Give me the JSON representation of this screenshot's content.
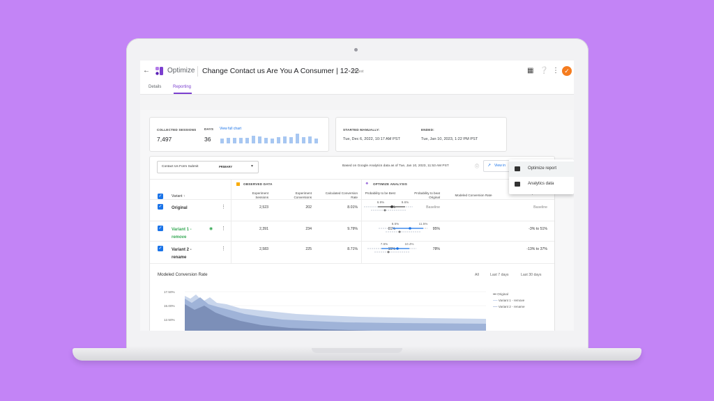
{
  "app": {
    "name": "Optimize",
    "title": "Change Contact us Are You A Consumer | 12-22",
    "type": "A/B test"
  },
  "tabs": [
    {
      "label": "Details"
    },
    {
      "label": "Reporting"
    }
  ],
  "summary": {
    "sessions_label": "COLLECTED SESSIONS",
    "sessions_value": "7,497",
    "days_label": "DAYS",
    "days_value": "36",
    "chart_link": "View full chart",
    "daily_bars": [
      0.45,
      0.55,
      0.55,
      0.55,
      0.55,
      0.75,
      0.7,
      0.55,
      0.5,
      0.6,
      0.7,
      0.6,
      0.95,
      0.6,
      0.65,
      0.45
    ],
    "started_label": "STARTED MANUALLY:",
    "started_value": "Tue, Dec 6, 2022, 10:17 AM PST",
    "ended_label": "ENDED:",
    "ended_value": "Tue, Jan 10, 2023, 1:22 PM PST"
  },
  "report": {
    "objective": "Contact Us Form Submit",
    "objective_badge": "PRIMARY",
    "based_on": "Based on Google Analytics data as of Tue, Jan 10, 2023, 11:53 AM PST",
    "view_in": "View in"
  },
  "menu": [
    {
      "label": "Optimize report"
    },
    {
      "label": "Analytics data"
    }
  ],
  "table": {
    "variant_header": "Variant",
    "observed_header": "OBSERVED DATA",
    "analysis_header": "OPTIMIZE ANALYSIS",
    "columns": [
      "Experiment Sessions",
      "Experiment Conversions",
      "Calculated Conversion Rate",
      "Probability to be Best",
      "Probability to beat Original",
      "Modeled Conversion Rate",
      "Modeled Improvement"
    ],
    "rows": [
      {
        "name": "Original",
        "sessions": "2,523",
        "conversions": "202",
        "rate": "8.01%",
        "best": "4%",
        "beat": "Baseline",
        "lo": "6.9%",
        "hi": "9.6%",
        "improvement": "Baseline"
      },
      {
        "name": "Variant 1 - remove",
        "sessions": "2,391",
        "conversions": "234",
        "rate": "9.79%",
        "best": "81%",
        "beat": "95%",
        "lo": "8.5%",
        "hi": "11.5%",
        "improvement": "-3% to 51%"
      },
      {
        "name": "Variant 2 - rename",
        "sessions": "2,583",
        "conversions": "225",
        "rate": "8.71%",
        "best": "15%",
        "beat": "78%",
        "lo": "7.6%",
        "hi": "10.4%",
        "improvement": "-13% to 37%"
      }
    ]
  },
  "modeled_chart": {
    "title": "Modeled Conversion Rate",
    "ranges": [
      "All",
      "Last 7 days",
      "Last 30 days"
    ],
    "ytick_labels": [
      "17.50%",
      "15.00%",
      "12.50%"
    ],
    "legend": [
      "Original",
      "Variant 1 - remove",
      "Variant 2 - rename"
    ]
  },
  "colors": {
    "accent": "#7b3fcf",
    "blue": "#1a73e8",
    "green": "#34a853",
    "bg": "#c384f6"
  }
}
